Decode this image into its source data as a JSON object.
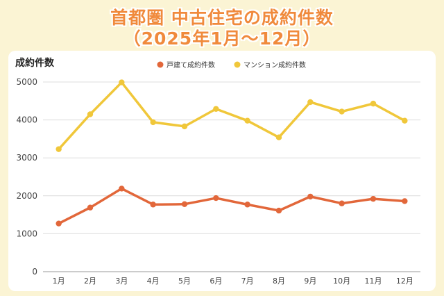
{
  "header": {
    "title_line1": "首都圏 中古住宅の成約件数",
    "title_line2": "（2025年1月〜12月）"
  },
  "chart_data": {
    "type": "line",
    "categories": [
      "1月",
      "2月",
      "3月",
      "4月",
      "5月",
      "6月",
      "7月",
      "8月",
      "9月",
      "10月",
      "11月",
      "12月"
    ],
    "ylabel": "成約件数",
    "ylim": [
      0,
      5000
    ],
    "yticks": [
      0,
      1000,
      2000,
      3000,
      4000,
      5000
    ],
    "grid": true,
    "legend_position": "top-center",
    "series": [
      {
        "name": "戸建て成約件数",
        "color": "#e2673a",
        "values": [
          1270,
          1690,
          2190,
          1770,
          1780,
          1940,
          1770,
          1610,
          1980,
          1800,
          1920,
          1860
        ]
      },
      {
        "name": "マンション成約件数",
        "color": "#f0c73a",
        "values": [
          3230,
          4150,
          4990,
          3940,
          3830,
          4290,
          3980,
          3540,
          4470,
          4220,
          4430,
          3980
        ]
      }
    ]
  }
}
